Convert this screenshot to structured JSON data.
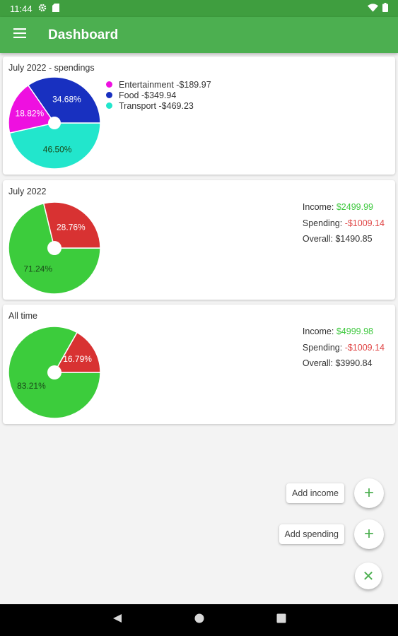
{
  "status_bar": {
    "time": "11:44"
  },
  "app_bar": {
    "title": "Dashboard"
  },
  "cards": [
    {
      "title": "July 2022 - spendings",
      "slices": [
        {
          "label": "46.50%",
          "value": 46.5,
          "color": "#22e6cc"
        },
        {
          "label": "18.82%",
          "value": 18.82,
          "color": "#ee10e0"
        },
        {
          "label": "34.68%",
          "value": 34.68,
          "color": "#1830c0"
        }
      ],
      "legend": [
        {
          "text": "Entertainment -$189.97",
          "color": "#ee10e0"
        },
        {
          "text": "Food -$349.94",
          "color": "#1830c0"
        },
        {
          "text": "Transport -$469.23",
          "color": "#22e6cc"
        }
      ]
    },
    {
      "title": "July 2022",
      "slices": [
        {
          "label": "71.24%",
          "value": 71.24,
          "color": "#3ccc3c"
        },
        {
          "label": "28.76%",
          "value": 28.76,
          "color": "#d83232"
        }
      ],
      "summary": {
        "income_label": "Income:",
        "income_value": "$2499.99",
        "spending_label": "Spending:",
        "spending_value": "-$1009.14",
        "overall_label": "Overall:",
        "overall_value": "$1490.85"
      }
    },
    {
      "title": "All time",
      "slices": [
        {
          "label": "83.21%",
          "value": 83.21,
          "color": "#3ccc3c"
        },
        {
          "label": "16.79%",
          "value": 16.79,
          "color": "#d83232"
        }
      ],
      "summary": {
        "income_label": "Income:",
        "income_value": "$4999.98",
        "spending_label": "Spending:",
        "spending_value": "-$1009.14",
        "overall_label": "Overall:",
        "overall_value": "$3990.84"
      }
    }
  ],
  "fab": {
    "add_income_label": "Add income",
    "add_spending_label": "Add spending",
    "plus_glyph": "+",
    "close_glyph": "✕"
  },
  "icons": {
    "menu": "menu-icon",
    "settings": "gear-icon",
    "sd_card": "sd-card-icon",
    "wifi": "wifi-icon",
    "battery": "battery-icon",
    "back": "back-icon",
    "home": "home-icon",
    "recents": "recents-icon"
  }
}
